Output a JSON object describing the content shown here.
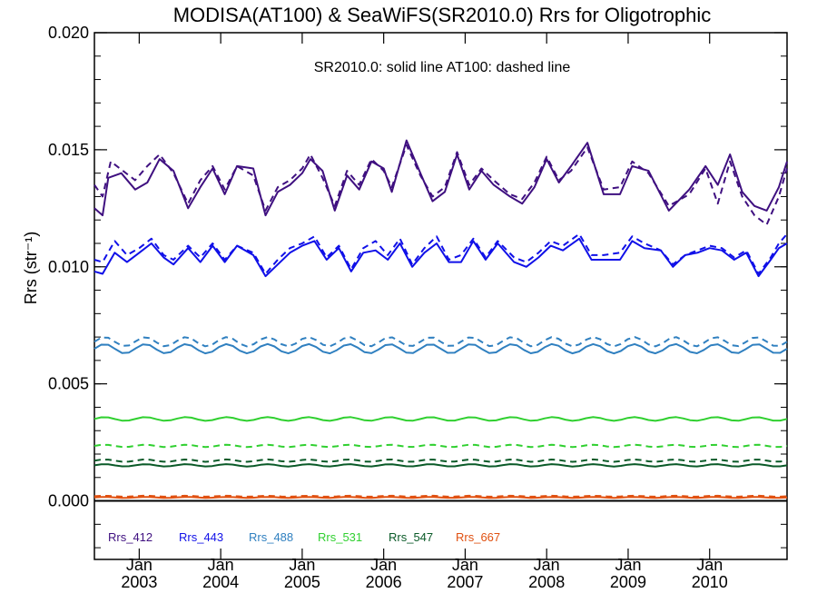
{
  "chart_data": {
    "type": "line",
    "title": "MODISA(AT100) & SeaWiFS(SR2010.0)  Rrs for Oligotrophic",
    "annotation": "SR2010.0: solid line   AT100: dashed line",
    "ylabel": "Rrs (str⁻¹)",
    "xlabel": "",
    "ylim": [
      -0.0025,
      0.02
    ],
    "xlim": [
      2002.45,
      2010.95
    ],
    "y_ticks": [
      "0.000",
      "0.005",
      "0.010",
      "0.015",
      "0.020"
    ],
    "x_ticks": [
      {
        "month": "Jan",
        "year": "2003",
        "x": 2003.0
      },
      {
        "month": "Jan",
        "year": "2004",
        "x": 2004.0
      },
      {
        "month": "Jan",
        "year": "2005",
        "x": 2005.0
      },
      {
        "month": "Jan",
        "year": "2006",
        "x": 2006.0
      },
      {
        "month": "Jan",
        "year": "2007",
        "x": 2007.0
      },
      {
        "month": "Jan",
        "year": "2008",
        "x": 2008.0
      },
      {
        "month": "Jan",
        "year": "2009",
        "x": 2009.0
      },
      {
        "month": "Jan",
        "year": "2010",
        "x": 2010.0
      }
    ],
    "zero_line": 0.0,
    "legend": [
      {
        "label": "Rrs_412",
        "color": "#3f1080"
      },
      {
        "label": "Rrs_443",
        "color": "#1010e8"
      },
      {
        "label": "Rrs_488",
        "color": "#3080c0"
      },
      {
        "label": "Rrs_531",
        "color": "#30d030"
      },
      {
        "label": "Rrs_547",
        "color": "#0a5a28"
      },
      {
        "label": "Rrs_667",
        "color": "#e05010"
      }
    ],
    "series": [
      {
        "band": "412",
        "style": "solid",
        "color": "#3f1080",
        "x": [
          2002.45,
          2002.55,
          2002.62,
          2002.78,
          2002.95,
          2003.1,
          2003.25,
          2003.42,
          2003.6,
          2003.75,
          2003.9,
          2004.05,
          2004.2,
          2004.4,
          2004.55,
          2004.7,
          2004.85,
          2005.0,
          2005.1,
          2005.25,
          2005.4,
          2005.55,
          2005.7,
          2005.85,
          2006.0,
          2006.1,
          2006.28,
          2006.45,
          2006.6,
          2006.75,
          2006.9,
          2007.05,
          2007.2,
          2007.35,
          2007.55,
          2007.7,
          2007.85,
          2008.0,
          2008.15,
          2008.3,
          2008.5,
          2008.7,
          2008.9,
          2009.05,
          2009.25,
          2009.5,
          2009.75,
          2009.95,
          2010.1,
          2010.25,
          2010.4,
          2010.55,
          2010.7,
          2010.85,
          2010.95
        ],
        "y": [
          0.0125,
          0.0122,
          0.0138,
          0.014,
          0.0133,
          0.0136,
          0.0146,
          0.0141,
          0.0125,
          0.0134,
          0.0142,
          0.0131,
          0.0143,
          0.0142,
          0.0122,
          0.0132,
          0.0135,
          0.014,
          0.0146,
          0.0141,
          0.0124,
          0.0139,
          0.0133,
          0.0145,
          0.0142,
          0.0132,
          0.0154,
          0.014,
          0.0128,
          0.0132,
          0.0148,
          0.0133,
          0.0141,
          0.0135,
          0.013,
          0.0127,
          0.0134,
          0.0146,
          0.0136,
          0.0143,
          0.0153,
          0.0131,
          0.0131,
          0.0143,
          0.0141,
          0.0124,
          0.0133,
          0.0143,
          0.0135,
          0.0148,
          0.0132,
          0.0126,
          0.0124,
          0.0134,
          0.0145
        ]
      },
      {
        "band": "412",
        "style": "dashed",
        "color": "#3f1080",
        "x": [
          2002.45,
          2002.55,
          2002.65,
          2002.8,
          2002.95,
          2003.1,
          2003.25,
          2003.42,
          2003.6,
          2003.75,
          2003.9,
          2004.05,
          2004.2,
          2004.4,
          2004.55,
          2004.7,
          2004.85,
          2005.0,
          2005.1,
          2005.25,
          2005.4,
          2005.55,
          2005.7,
          2005.85,
          2006.0,
          2006.1,
          2006.28,
          2006.45,
          2006.6,
          2006.75,
          2006.9,
          2007.05,
          2007.2,
          2007.35,
          2007.55,
          2007.7,
          2007.85,
          2008.0,
          2008.15,
          2008.3,
          2008.5,
          2008.7,
          2008.9,
          2009.05,
          2009.25,
          2009.5,
          2009.75,
          2009.95,
          2010.1,
          2010.25,
          2010.4,
          2010.55,
          2010.7,
          2010.85,
          2010.95
        ],
        "y": [
          0.0135,
          0.013,
          0.0145,
          0.0141,
          0.0137,
          0.0143,
          0.0148,
          0.014,
          0.0127,
          0.0137,
          0.0143,
          0.0133,
          0.0143,
          0.0139,
          0.0124,
          0.0134,
          0.0137,
          0.0142,
          0.0148,
          0.0138,
          0.0126,
          0.0141,
          0.0135,
          0.0146,
          0.0141,
          0.0134,
          0.0152,
          0.0139,
          0.013,
          0.0134,
          0.0149,
          0.0135,
          0.0142,
          0.0137,
          0.0131,
          0.0129,
          0.0136,
          0.0147,
          0.0137,
          0.0141,
          0.0151,
          0.0133,
          0.0134,
          0.0145,
          0.014,
          0.0126,
          0.0131,
          0.0142,
          0.0127,
          0.0145,
          0.013,
          0.0122,
          0.0118,
          0.013,
          0.0142
        ]
      },
      {
        "band": "443",
        "style": "solid",
        "color": "#1010e8",
        "x": [
          2002.45,
          2002.55,
          2002.7,
          2002.85,
          2003.0,
          2003.15,
          2003.3,
          2003.42,
          2003.6,
          2003.75,
          2003.9,
          2004.05,
          2004.2,
          2004.4,
          2004.55,
          2004.7,
          2004.85,
          2005.0,
          2005.15,
          2005.3,
          2005.45,
          2005.6,
          2005.75,
          2005.9,
          2006.05,
          2006.2,
          2006.35,
          2006.5,
          2006.65,
          2006.8,
          2006.95,
          2007.1,
          2007.25,
          2007.4,
          2007.6,
          2007.75,
          2007.9,
          2008.05,
          2008.2,
          2008.4,
          2008.55,
          2008.7,
          2008.9,
          2009.05,
          2009.2,
          2009.4,
          2009.55,
          2009.7,
          2009.85,
          2010.0,
          2010.15,
          2010.3,
          2010.45,
          2010.6,
          2010.75,
          2010.85,
          2010.95
        ],
        "y": [
          0.0098,
          0.0097,
          0.0106,
          0.0102,
          0.0106,
          0.011,
          0.0104,
          0.0101,
          0.0108,
          0.0102,
          0.0109,
          0.0102,
          0.0109,
          0.0105,
          0.0096,
          0.0101,
          0.0106,
          0.0109,
          0.0111,
          0.0103,
          0.0108,
          0.0098,
          0.0106,
          0.0107,
          0.0103,
          0.011,
          0.01,
          0.0106,
          0.011,
          0.0102,
          0.0102,
          0.0111,
          0.0103,
          0.011,
          0.0102,
          0.01,
          0.0104,
          0.0109,
          0.0107,
          0.0112,
          0.0103,
          0.0103,
          0.0103,
          0.0111,
          0.0108,
          0.0107,
          0.01,
          0.0105,
          0.0106,
          0.0108,
          0.0107,
          0.0103,
          0.0106,
          0.0096,
          0.0103,
          0.0108,
          0.011
        ]
      },
      {
        "band": "443",
        "style": "dashed",
        "color": "#1010e8",
        "x": [
          2002.45,
          2002.55,
          2002.7,
          2002.85,
          2003.0,
          2003.15,
          2003.3,
          2003.42,
          2003.6,
          2003.75,
          2003.9,
          2004.05,
          2004.2,
          2004.4,
          2004.55,
          2004.7,
          2004.85,
          2005.0,
          2005.15,
          2005.3,
          2005.45,
          2005.6,
          2005.75,
          2005.9,
          2006.05,
          2006.2,
          2006.35,
          2006.5,
          2006.65,
          2006.8,
          2006.95,
          2007.1,
          2007.25,
          2007.4,
          2007.6,
          2007.75,
          2007.9,
          2008.05,
          2008.2,
          2008.4,
          2008.55,
          2008.7,
          2008.9,
          2009.05,
          2009.2,
          2009.4,
          2009.55,
          2009.7,
          2009.85,
          2010.0,
          2010.15,
          2010.3,
          2010.45,
          2010.6,
          2010.75,
          2010.85,
          2010.95
        ],
        "y": [
          0.0103,
          0.0102,
          0.0111,
          0.0105,
          0.0108,
          0.0112,
          0.0105,
          0.0103,
          0.0109,
          0.0104,
          0.011,
          0.0103,
          0.0109,
          0.0106,
          0.0097,
          0.0103,
          0.0108,
          0.011,
          0.0113,
          0.0104,
          0.0109,
          0.0099,
          0.0108,
          0.0111,
          0.0105,
          0.0112,
          0.0101,
          0.0108,
          0.0113,
          0.0103,
          0.0105,
          0.0112,
          0.0104,
          0.0111,
          0.0104,
          0.0102,
          0.0106,
          0.0111,
          0.0109,
          0.0114,
          0.0105,
          0.0105,
          0.0106,
          0.0113,
          0.011,
          0.0107,
          0.0101,
          0.0105,
          0.0107,
          0.0109,
          0.0108,
          0.0104,
          0.0107,
          0.0097,
          0.0104,
          0.011,
          0.0114
        ]
      },
      {
        "band": "488",
        "style": "solid",
        "color": "#3080c0",
        "y_mean": 0.0065,
        "amplitude": 0.0002,
        "x_start": 2002.45,
        "x_end": 2010.95
      },
      {
        "band": "488",
        "style": "dashed",
        "color": "#3080c0",
        "y_mean": 0.0068,
        "amplitude": 0.0002,
        "x_start": 2002.45,
        "x_end": 2010.95
      },
      {
        "band": "531",
        "style": "solid",
        "color": "#30d030",
        "y_mean": 0.0035,
        "amplitude": 8e-05,
        "x_start": 2002.45,
        "x_end": 2010.95
      },
      {
        "band": "531",
        "style": "dashed",
        "color": "#30d030",
        "y_mean": 0.00235,
        "amplitude": 5e-05,
        "x_start": 2002.45,
        "x_end": 2010.95
      },
      {
        "band": "547",
        "style": "solid",
        "color": "#0a5a28",
        "y_mean": 0.00152,
        "amplitude": 5e-05,
        "x_start": 2002.45,
        "x_end": 2010.95
      },
      {
        "band": "547",
        "style": "dashed",
        "color": "#0a5a28",
        "y_mean": 0.00172,
        "amplitude": 5e-05,
        "x_start": 2002.45,
        "x_end": 2010.95
      },
      {
        "band": "667",
        "style": "solid",
        "color": "#e05010",
        "y_mean": 0.00015,
        "amplitude": 2e-05,
        "x_start": 2002.45,
        "x_end": 2010.95
      },
      {
        "band": "667",
        "style": "dashed",
        "color": "#e05010",
        "y_mean": 0.0002,
        "amplitude": 2e-05,
        "x_start": 2002.45,
        "x_end": 2010.95
      }
    ]
  }
}
